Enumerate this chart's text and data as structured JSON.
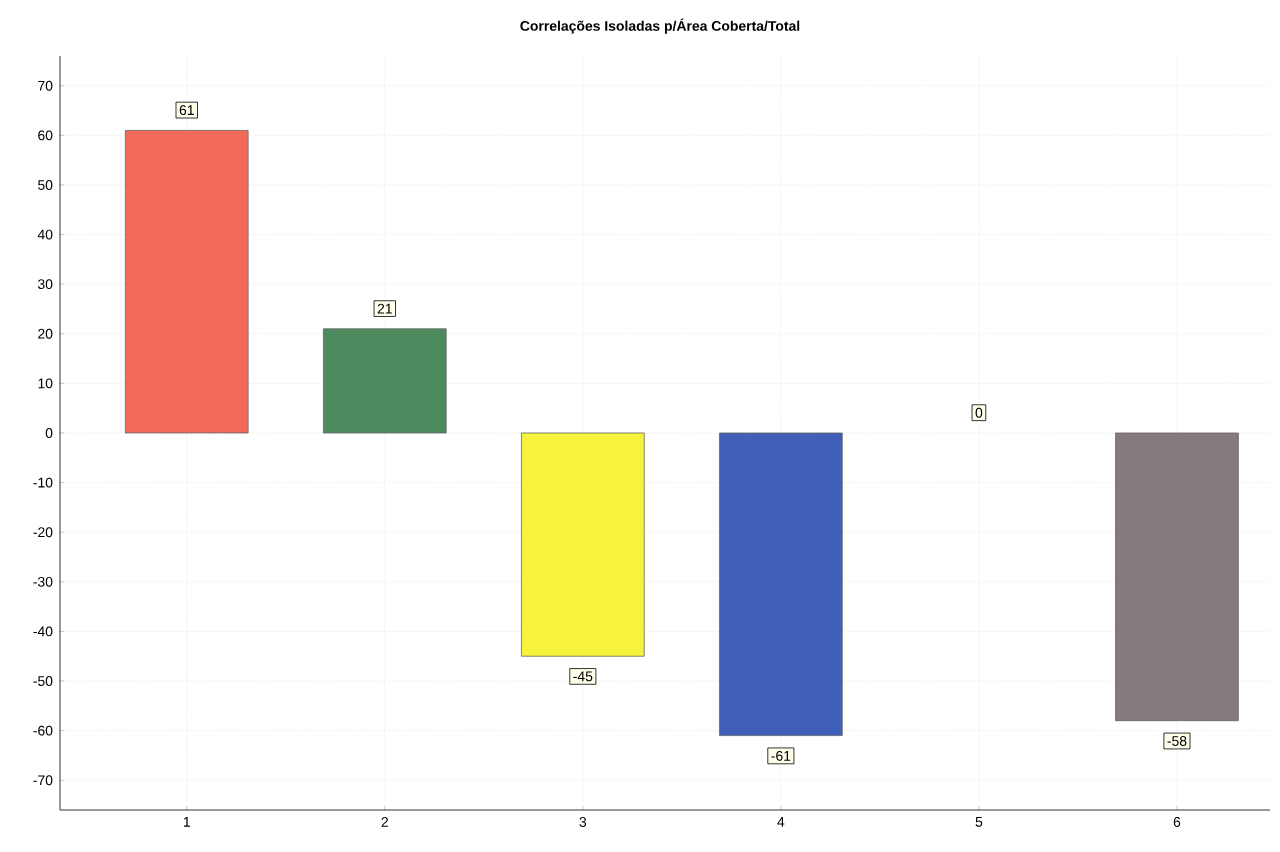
{
  "chart_data": {
    "type": "bar",
    "title": "Correlações Isoladas p/Área Coberta/Total",
    "categories": [
      "1",
      "2",
      "3",
      "4",
      "5",
      "6"
    ],
    "values": [
      61,
      21,
      -45,
      -61,
      0,
      -58
    ],
    "colors": [
      "#f26a5a",
      "#4d8a5e",
      "#f7f23c",
      "#3f5fb8",
      "#ffffff",
      "#857a7c"
    ],
    "ylim": [
      -76,
      76
    ],
    "yticks": [
      -70,
      -60,
      -50,
      -40,
      -30,
      -20,
      -10,
      0,
      10,
      20,
      30,
      40,
      50,
      60,
      70
    ],
    "grid": true,
    "data_labels": true
  }
}
